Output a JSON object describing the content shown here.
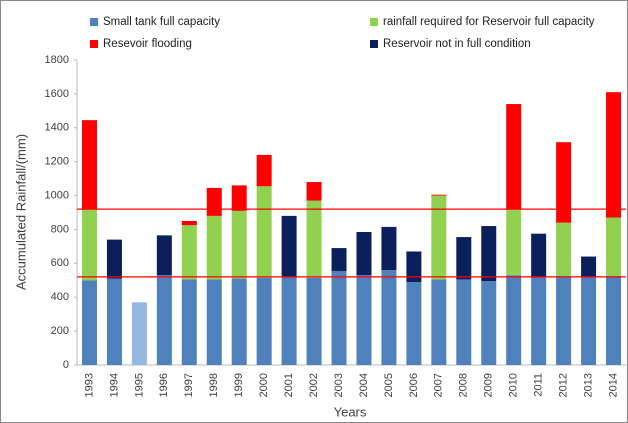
{
  "chart_data": {
    "type": "stacked_bar",
    "categories": [
      "1993",
      "1994",
      "1995",
      "1996",
      "1997",
      "1998",
      "1999",
      "2000",
      "2001",
      "2002",
      "2003",
      "2004",
      "2005",
      "2006",
      "2007",
      "2008",
      "2009",
      "2010",
      "2011",
      "2012",
      "2013",
      "2014"
    ],
    "series": [
      {
        "name": "Small tank full  capacity",
        "color": "#4f81bd",
        "point_colors": {
          "2": "#95b8e3"
        },
        "values": [
          500,
          510,
          370,
          530,
          505,
          505,
          510,
          515,
          515,
          515,
          555,
          530,
          560,
          490,
          505,
          505,
          495,
          530,
          515,
          525,
          520,
          525
        ]
      },
      {
        "name": "rainfall required for Reservoir full capacity",
        "color": "#92d050",
        "values": [
          420,
          0,
          0,
          0,
          320,
          375,
          400,
          540,
          0,
          455,
          0,
          0,
          0,
          0,
          495,
          0,
          0,
          390,
          0,
          315,
          0,
          345
        ]
      },
      {
        "name": "Reservoir not in full condition",
        "color": "#0b1f5c",
        "values": [
          0,
          230,
          0,
          235,
          0,
          0,
          0,
          0,
          365,
          0,
          135,
          255,
          255,
          180,
          0,
          250,
          325,
          0,
          260,
          0,
          120,
          0
        ]
      },
      {
        "name": "Resevoir flooding",
        "color": "#ff0000",
        "values": [
          525,
          0,
          0,
          0,
          25,
          165,
          150,
          185,
          0,
          110,
          0,
          0,
          0,
          0,
          5,
          0,
          0,
          620,
          0,
          475,
          0,
          740
        ]
      }
    ],
    "reference_lines": [
      {
        "value": 920,
        "color": "#ff0000"
      },
      {
        "value": 520,
        "color": "#ff0000"
      }
    ],
    "ylim": [
      0,
      1800
    ],
    "yticks": [
      0,
      200,
      400,
      600,
      800,
      1000,
      1200,
      1400,
      1600,
      1800
    ],
    "y_label": "Accumulated Rainfall/(mm)",
    "x_label": "Years",
    "grid": false
  }
}
